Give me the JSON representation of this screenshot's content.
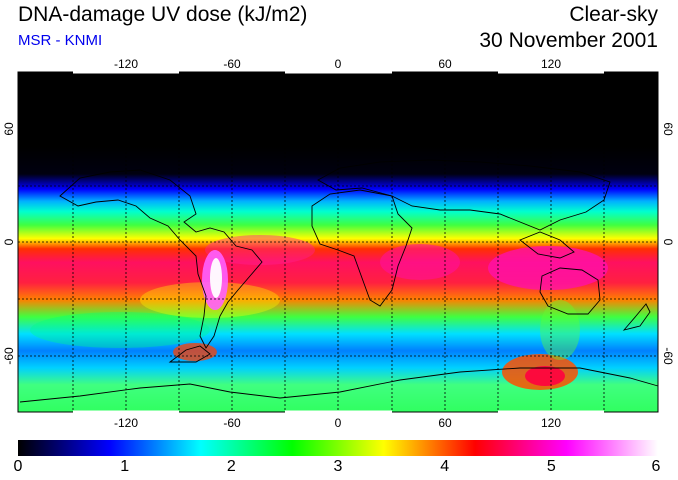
{
  "header": {
    "title": "DNA-damage UV dose (kJ/m2)",
    "source": "MSR - KNMI",
    "mode": "Clear-sky",
    "date": "30 November 2001"
  },
  "map": {
    "projection": "equirectangular",
    "longitude_ticks": [
      "-120",
      "-60",
      "0",
      "60",
      "120"
    ],
    "latitude_ticks": [
      "60",
      "0",
      "-60"
    ],
    "gridlines": "dashed black every 30 degrees"
  },
  "colorbar": {
    "tick_labels": [
      "0",
      "1",
      "2",
      "3",
      "4",
      "5",
      "6"
    ],
    "colors": [
      "#000000",
      "#0000ff",
      "#00ffff",
      "#00ff00",
      "#ffff00",
      "#ff0000",
      "#ff00ff",
      "#ffffff"
    ]
  },
  "palette": {
    "background": "#ffffff",
    "source_text": "#0000ee",
    "grid": "#000000"
  }
}
